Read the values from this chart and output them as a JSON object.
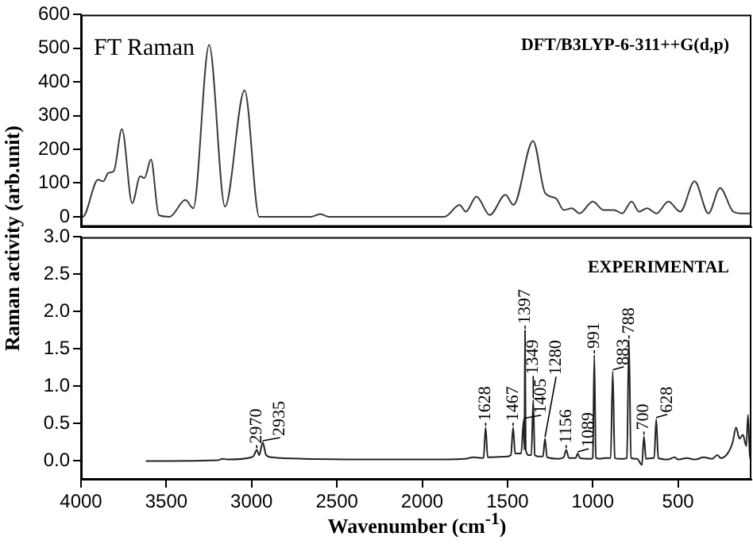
{
  "chart_data": [
    {
      "type": "line",
      "ylabel": "Raman activity (arb.unit)",
      "annotations": [
        "FT Raman",
        "DFT/B3LYP-6-311++G(d,p)"
      ],
      "x": [
        4000,
        3990,
        3900,
        3870,
        3840,
        3808,
        3760,
        3700,
        3653,
        3628,
        3590,
        3544,
        3480,
        3388,
        3342,
        3249,
        3156,
        3041,
        2955,
        2650,
        2597,
        2550,
        1868,
        1781,
        1744,
        1682,
        1604,
        1512,
        1465,
        1350,
        1279,
        1217,
        1170,
        1123,
        1077,
        1000,
        937,
        875,
        828,
        772,
        729,
        682,
        626,
        557,
        487,
        403,
        322,
        254,
        176,
        130,
        70
      ],
      "values": [
        0,
        0,
        110,
        105,
        130,
        135,
        260,
        40,
        120,
        115,
        170,
        5,
        0,
        50,
        25,
        510,
        30,
        375,
        0,
        0,
        8,
        0,
        0,
        35,
        15,
        60,
        5,
        65,
        35,
        225,
        70,
        55,
        20,
        25,
        10,
        45,
        20,
        20,
        10,
        45,
        15,
        25,
        10,
        45,
        15,
        105,
        10,
        85,
        15,
        10,
        10
      ],
      "color": "#3a3a3a",
      "xlim": [
        4000,
        70
      ],
      "ylim": [
        -30,
        600
      ],
      "yticks": [
        0,
        100,
        200,
        300,
        400,
        500,
        600
      ],
      "tick_labels": "y"
    },
    {
      "type": "line",
      "xlabel": "Wavenumber (cm$^{-1}$)",
      "annotations": [
        "EXPERIMENTAL",
        {
          "text": "2970",
          "x": 2970,
          "y": 0.15
        },
        {
          "text": "2935",
          "x": 2935,
          "y": 0.25
        },
        {
          "text": "1628",
          "x": 1628,
          "y": 0.45
        },
        {
          "text": "1467",
          "x": 1467,
          "y": 0.45
        },
        {
          "text": "1405",
          "x": 1405,
          "y": 0.55
        },
        {
          "text": "1397",
          "x": 1397,
          "y": 1.75
        },
        {
          "text": "1349",
          "x": 1349,
          "y": 0.82
        },
        {
          "text": "1280",
          "x": 1280,
          "y": 0.3
        },
        {
          "text": "1156",
          "x": 1156,
          "y": 0.15
        },
        {
          "text": "1089",
          "x": 1089,
          "y": 0.1
        },
        {
          "text": "991",
          "x": 991,
          "y": 1.42
        },
        {
          "text": "883",
          "x": 883,
          "y": 1.2
        },
        {
          "text": "788",
          "x": 788,
          "y": 1.62
        },
        {
          "text": "700",
          "x": 700,
          "y": 0.33
        },
        {
          "text": "628",
          "x": 628,
          "y": 0.56
        }
      ],
      "x": [
        3620,
        3200,
        3170,
        3140,
        3000,
        2985,
        2970,
        2955,
        2935,
        2915,
        2880,
        2700,
        2000,
        1750,
        1700,
        1650,
        1640,
        1628,
        1616,
        1500,
        1480,
        1467,
        1455,
        1420,
        1405,
        1401,
        1397,
        1393,
        1375,
        1360,
        1349,
        1340,
        1320,
        1292,
        1280,
        1268,
        1200,
        1170,
        1156,
        1140,
        1100,
        1089,
        1075,
        1010,
        1000,
        991,
        982,
        960,
        930,
        895,
        883,
        871,
        850,
        820,
        800,
        788,
        776,
        740,
        712,
        700,
        688,
        650,
        640,
        628,
        616,
        560,
        520,
        500,
        450,
        400,
        350,
        300,
        270,
        250,
        210,
        180,
        160,
        140,
        120,
        100,
        90,
        80,
        70
      ],
      "values": [
        0.0,
        0.01,
        0.03,
        0.02,
        0.05,
        0.08,
        0.15,
        0.08,
        0.25,
        0.08,
        0.05,
        0.03,
        0.02,
        0.03,
        0.05,
        0.04,
        0.05,
        0.45,
        0.05,
        0.06,
        0.08,
        0.45,
        0.1,
        0.1,
        0.55,
        0.15,
        1.75,
        0.15,
        0.08,
        0.08,
        0.82,
        0.08,
        0.06,
        0.06,
        0.3,
        0.05,
        0.03,
        0.05,
        0.15,
        0.04,
        0.04,
        0.1,
        0.04,
        0.03,
        0.05,
        1.42,
        0.04,
        0.03,
        0.04,
        0.04,
        1.2,
        0.04,
        0.03,
        0.03,
        0.04,
        1.62,
        0.04,
        0.03,
        -0.05,
        0.33,
        0.03,
        0.04,
        0.04,
        0.56,
        0.04,
        0.02,
        0.05,
        0.02,
        0.04,
        0.02,
        0.05,
        0.03,
        0.08,
        0.04,
        0.1,
        0.25,
        0.45,
        0.3,
        0.35,
        0.2,
        0.62,
        0.1,
        0.0
      ],
      "color": "#222222",
      "xlim": [
        4000,
        70
      ],
      "xticks": [
        4000,
        3500,
        3000,
        2500,
        2000,
        1500,
        1000,
        500
      ],
      "ylim": [
        -0.25,
        3.0
      ],
      "yticks": [
        {
          "value": 0,
          "label": "0.0"
        },
        {
          "value": 0.5,
          "label": "0.5"
        },
        {
          "value": 1,
          "label": "1.0"
        },
        {
          "value": 1.5,
          "label": "1.5"
        },
        {
          "value": 2,
          "label": "2.0"
        },
        {
          "value": 2.5,
          "label": "2.5"
        },
        {
          "value": 3,
          "label": "3.0"
        }
      ]
    }
  ]
}
